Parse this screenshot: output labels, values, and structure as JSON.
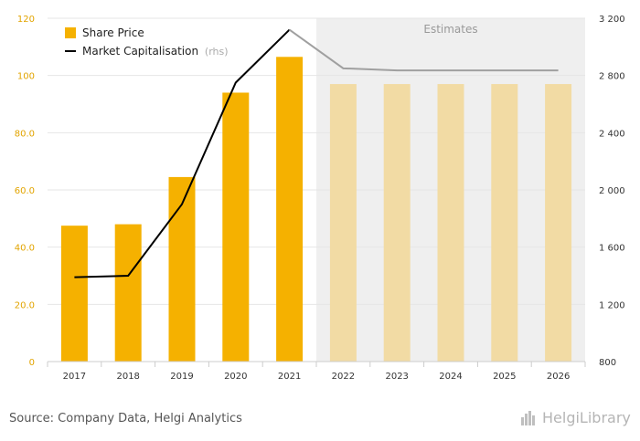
{
  "chart_data": {
    "type": "bar+line",
    "categories": [
      "2017",
      "2018",
      "2019",
      "2020",
      "2021",
      "2022",
      "2023",
      "2024",
      "2025",
      "2026"
    ],
    "estimate_start_index": 5,
    "estimates_label": "Estimates",
    "series": [
      {
        "name": "Share Price",
        "type": "bar",
        "axis": "left",
        "values": [
          47.5,
          48.0,
          64.5,
          94.0,
          106.5,
          97.0,
          97.0,
          97.0,
          97.0,
          97.0
        ]
      },
      {
        "name": "Market Capitalisation",
        "name_suffix": "(rhs)",
        "type": "line",
        "axis": "right",
        "values": [
          1390,
          1400,
          1900,
          2750,
          3120,
          2850,
          2835,
          2835,
          2835,
          2835
        ]
      }
    ],
    "y_left": {
      "min": 0,
      "max": 120,
      "ticks": [
        0,
        20,
        40,
        60,
        80,
        100,
        120
      ],
      "tick_labels": [
        "0",
        "20.0",
        "40.0",
        "60.0",
        "80.0",
        "100",
        "120"
      ]
    },
    "y_right": {
      "min": 800,
      "max": 3200,
      "ticks": [
        800,
        1200,
        1600,
        2000,
        2400,
        2800,
        3200
      ],
      "tick_labels": [
        "800",
        "1 200",
        "1 600",
        "2 000",
        "2 400",
        "2 800",
        "3 200"
      ]
    },
    "legend_position": "top-left",
    "colors": {
      "bar_actual": "#f5b100",
      "bar_estimate": "#f2dba4",
      "line_actual": "#000000",
      "line_estimate": "#a0a0a0",
      "estimate_shade": "#efefef",
      "left_tick": "#e2a400"
    }
  },
  "footer": {
    "source": "Source: Company Data, Helgi Analytics",
    "brand": "HelgiLibrary"
  }
}
